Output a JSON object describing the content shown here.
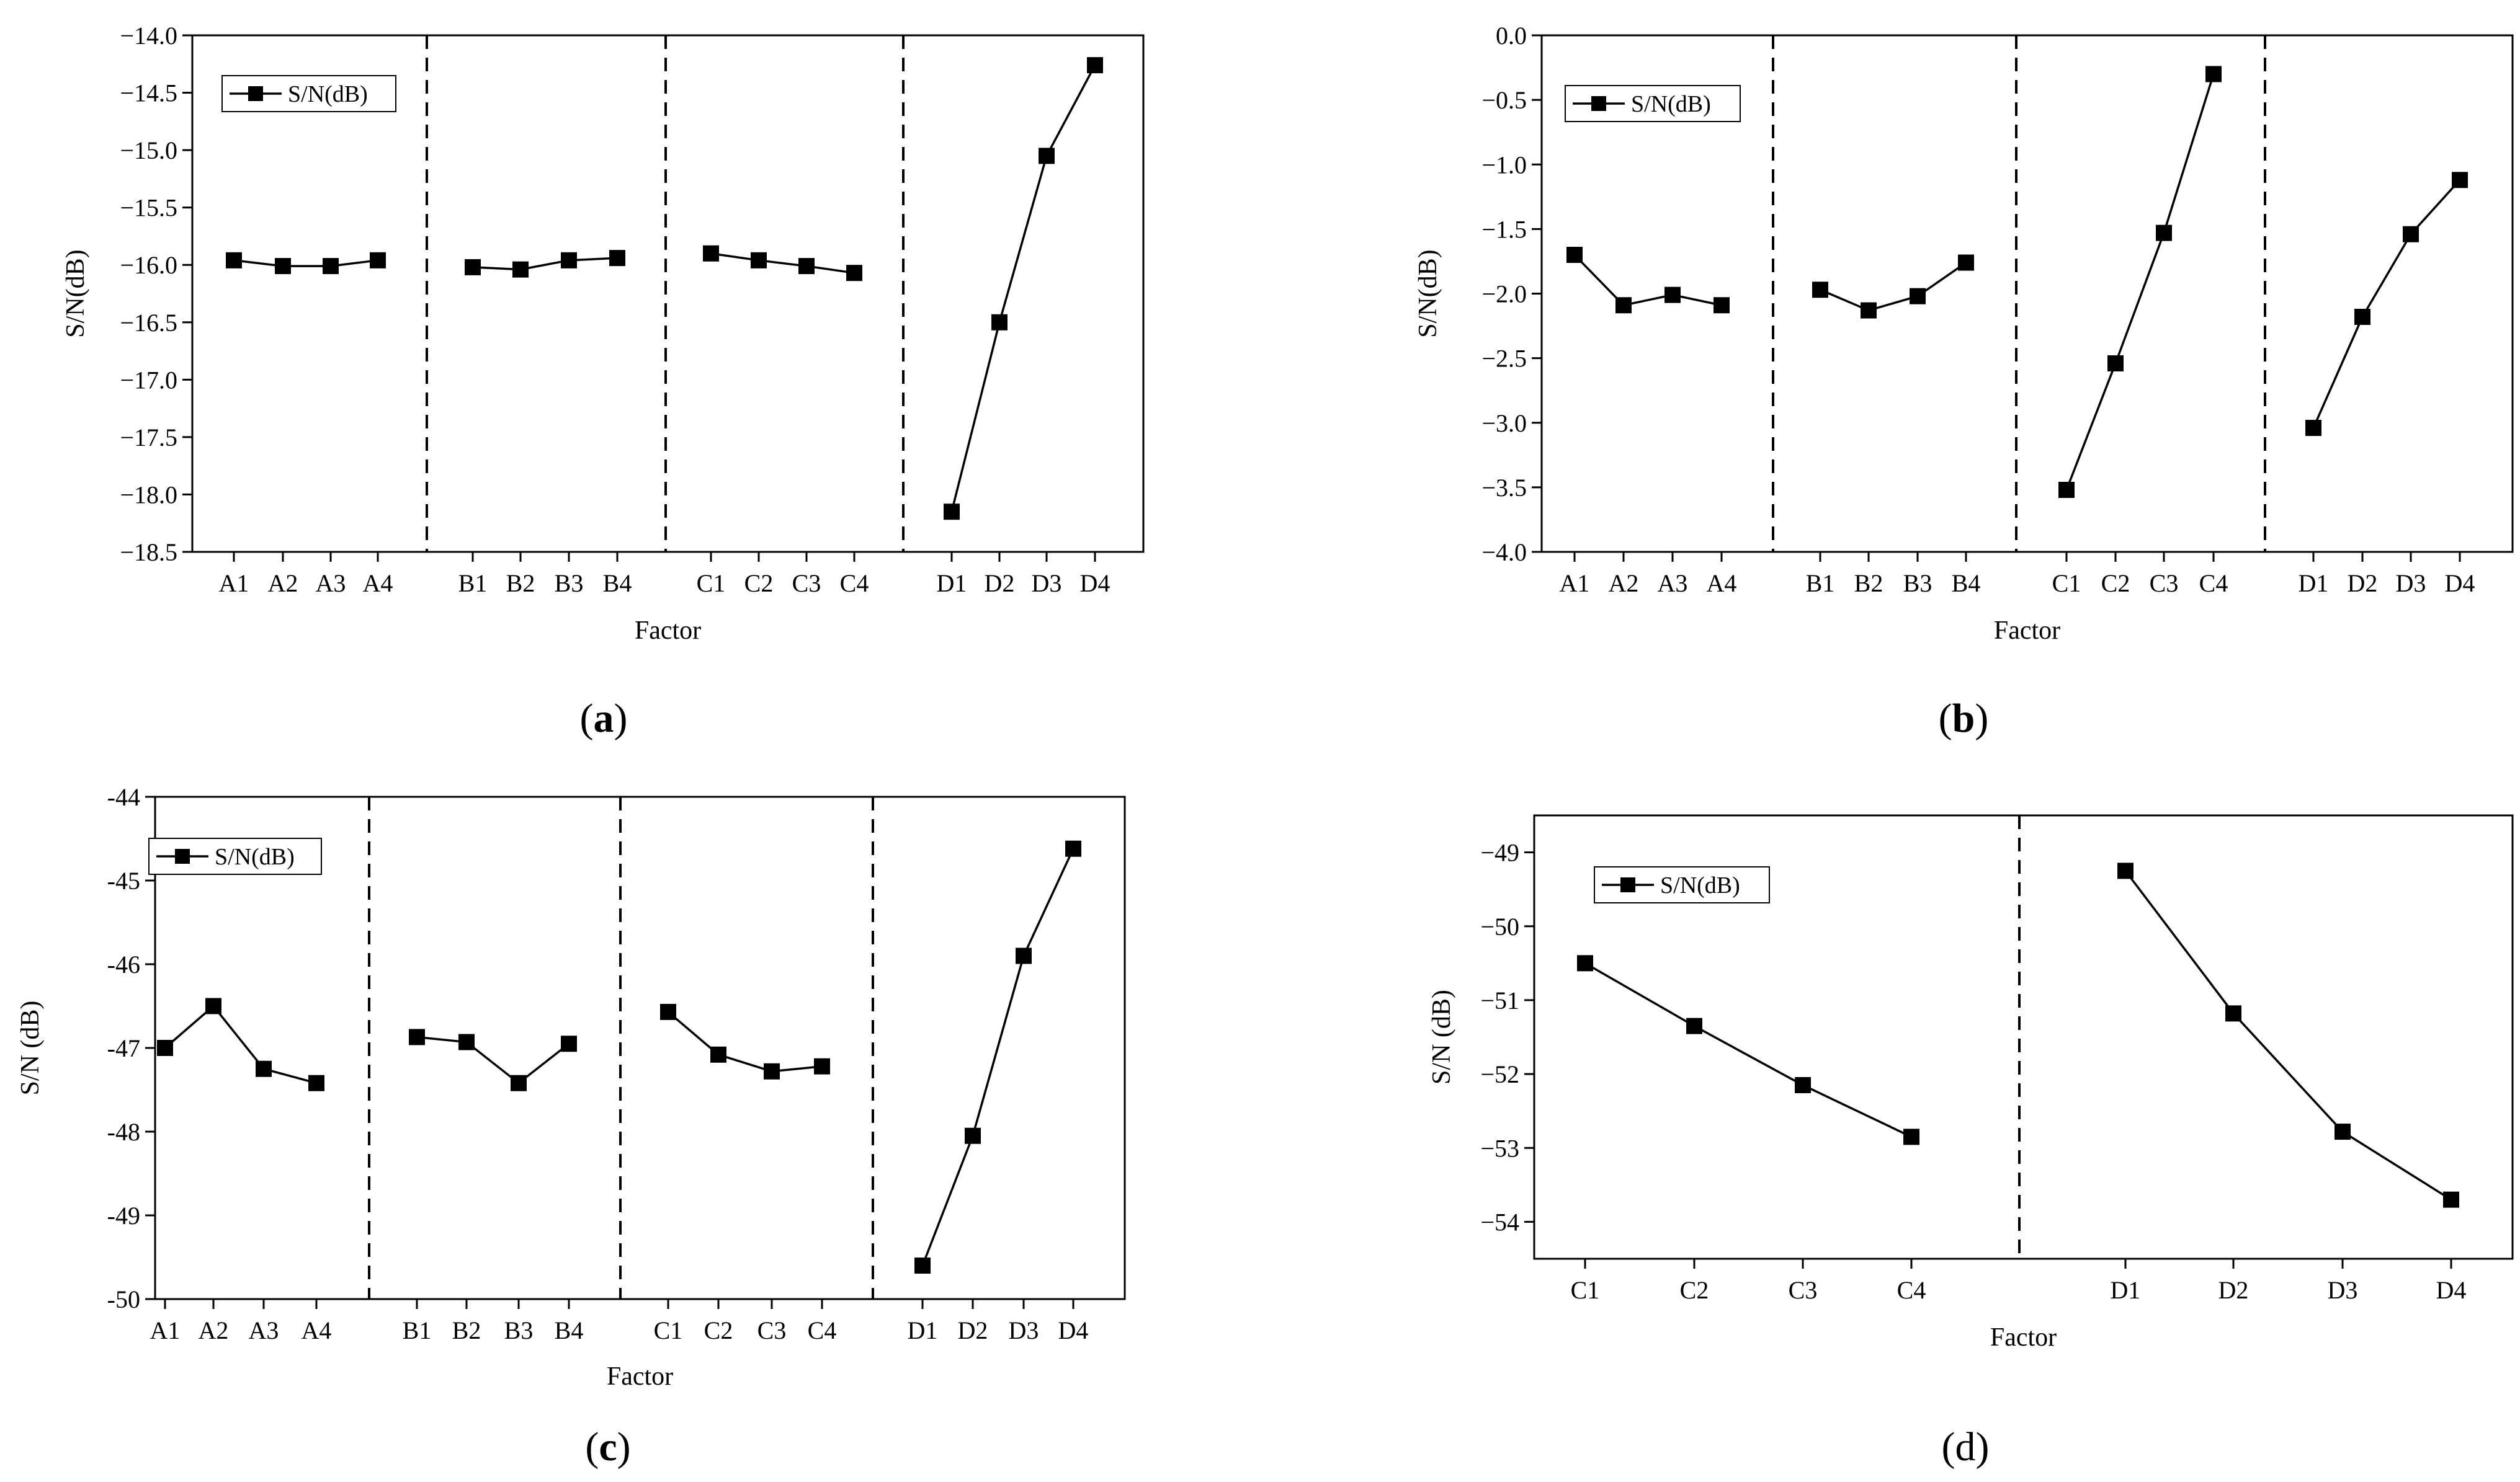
{
  "colors": {
    "line": "#000000",
    "marker": "#000000",
    "background": "#ffffff"
  },
  "chart_data": [
    {
      "id": "a",
      "type": "line",
      "panel_label": {
        "open": "(",
        "letter": "a",
        "close": ")",
        "bold": true
      },
      "ylabel": "S/N(dB)",
      "xlabel": "Factor",
      "legend": "S/N(dB)",
      "legend_position": "top-left",
      "ylim": [
        -18.5,
        -14.0
      ],
      "yticks": [
        -18.5,
        -18.0,
        -17.5,
        -17.0,
        -16.5,
        -16.0,
        -15.5,
        -15.0,
        -14.5,
        -14.0
      ],
      "ytick_labels": [
        "−18.5",
        "−18.0",
        "−17.5",
        "−17.0",
        "−16.5",
        "−16.0",
        "−15.5",
        "−15.0",
        "−14.5",
        "−14.0"
      ],
      "groups": [
        {
          "categories": [
            "A1",
            "A2",
            "A3",
            "A4"
          ],
          "values": [
            -15.96,
            -16.01,
            -16.01,
            -15.96
          ]
        },
        {
          "categories": [
            "B1",
            "B2",
            "B3",
            "B4"
          ],
          "values": [
            -16.02,
            -16.04,
            -15.96,
            -15.94
          ]
        },
        {
          "categories": [
            "C1",
            "C2",
            "C3",
            "C4"
          ],
          "values": [
            -15.9,
            -15.96,
            -16.01,
            -16.07
          ]
        },
        {
          "categories": [
            "D1",
            "D2",
            "D3",
            "D4"
          ],
          "values": [
            -18.15,
            -16.5,
            -15.05,
            -14.26
          ]
        }
      ]
    },
    {
      "id": "b",
      "type": "line",
      "panel_label": {
        "open": "(",
        "letter": "b",
        "close": ")",
        "bold": true
      },
      "ylabel": "S/N(dB)",
      "xlabel": "Factor",
      "legend": "S/N(dB)",
      "legend_position": "top-left",
      "ylim": [
        -4.0,
        0.0
      ],
      "yticks": [
        -4.0,
        -3.5,
        -3.0,
        -2.5,
        -2.0,
        -1.5,
        -1.0,
        -0.5,
        0.0
      ],
      "ytick_labels": [
        "−4.0",
        "−3.5",
        "−3.0",
        "−2.5",
        "−2.0",
        "−1.5",
        "−1.0",
        "−0.5",
        "0.0"
      ],
      "groups": [
        {
          "categories": [
            "A1",
            "A2",
            "A3",
            "A4"
          ],
          "values": [
            -1.7,
            -2.09,
            -2.01,
            -2.09
          ]
        },
        {
          "categories": [
            "B1",
            "B2",
            "B3",
            "B4"
          ],
          "values": [
            -1.97,
            -2.13,
            -2.02,
            -1.76
          ]
        },
        {
          "categories": [
            "C1",
            "C2",
            "C3",
            "C4"
          ],
          "values": [
            -3.52,
            -2.54,
            -1.53,
            -0.3
          ]
        },
        {
          "categories": [
            "D1",
            "D2",
            "D3",
            "D4"
          ],
          "values": [
            -3.04,
            -2.18,
            -1.54,
            -1.12
          ]
        }
      ]
    },
    {
      "id": "c",
      "type": "line",
      "panel_label": {
        "open": "(",
        "letter": "c",
        "close": ")",
        "bold": true
      },
      "ylabel": "S/N (dB)",
      "xlabel": "Factor",
      "legend": "S/N(dB)",
      "legend_position": "top-left",
      "ylim": [
        -50,
        -44
      ],
      "yticks": [
        -50,
        -49,
        -48,
        -47,
        -46,
        -45,
        -44
      ],
      "ytick_labels": [
        "-50",
        "-49",
        "-48",
        "-47",
        "-46",
        "-45",
        "-44"
      ],
      "groups": [
        {
          "categories": [
            "A1",
            "A2",
            "A3",
            "A4"
          ],
          "values": [
            -47.0,
            -46.5,
            -47.25,
            -47.42
          ]
        },
        {
          "categories": [
            "B1",
            "B2",
            "B3",
            "B4"
          ],
          "values": [
            -46.87,
            -46.93,
            -47.42,
            -46.95
          ]
        },
        {
          "categories": [
            "C1",
            "C2",
            "C3",
            "C4"
          ],
          "values": [
            -46.57,
            -47.08,
            -47.28,
            -47.22
          ]
        },
        {
          "categories": [
            "D1",
            "D2",
            "D3",
            "D4"
          ],
          "values": [
            -49.6,
            -48.05,
            -45.9,
            -44.62
          ]
        }
      ]
    },
    {
      "id": "d",
      "type": "line",
      "panel_label": {
        "open": "(",
        "letter": "d",
        "close": ")",
        "bold": false
      },
      "ylabel": "S/N (dB)",
      "xlabel": "Factor",
      "legend": "S/N(dB)",
      "legend_position": "top-left",
      "ylim": [
        -54.5,
        -48.5
      ],
      "yticks": [
        -54,
        -53,
        -52,
        -51,
        -50,
        -49
      ],
      "ytick_labels": [
        "−54",
        "−53",
        "−52",
        "−51",
        "−50",
        "−49"
      ],
      "groups": [
        {
          "categories": [
            "C1",
            "C2",
            "C3",
            "C4"
          ],
          "values": [
            -50.5,
            -51.35,
            -52.15,
            -52.85
          ]
        },
        {
          "categories": [
            "D1",
            "D2",
            "D3",
            "D4"
          ],
          "values": [
            -49.25,
            -51.18,
            -52.78,
            -53.7
          ]
        }
      ]
    }
  ]
}
